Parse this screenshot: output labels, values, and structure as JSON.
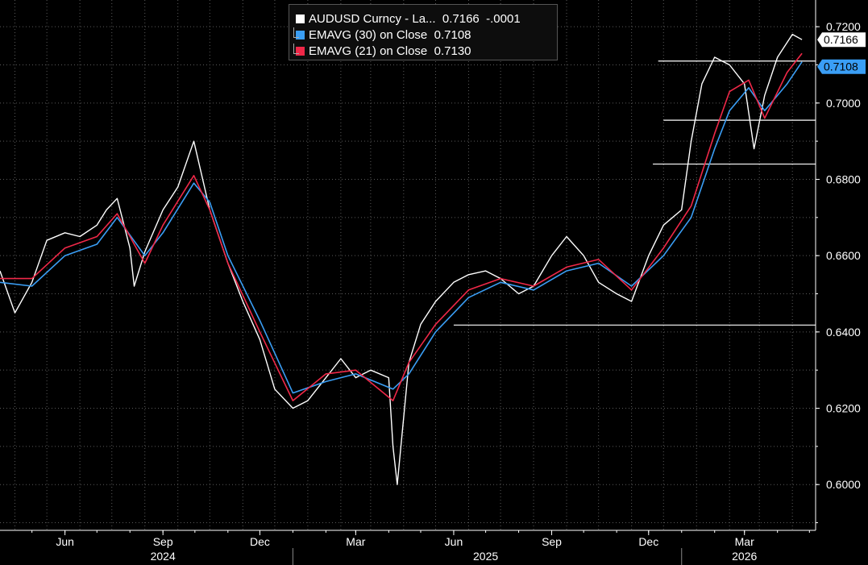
{
  "legend": {
    "items": [
      {
        "label": "AUDUSD Curncy - La...",
        "value": "0.7166",
        "change": "-.0001",
        "color": "#ffffff"
      },
      {
        "label": "EMAVG (30)  on Close",
        "value": "0.7108",
        "color": "#3a9ef5"
      },
      {
        "label": "EMAVG (21)  on Close",
        "value": "0.7130",
        "color": "#f02848"
      }
    ]
  },
  "price_tags": [
    {
      "text": "0.7166",
      "bg": "#ffffff",
      "fg": "#000000"
    },
    {
      "text": "0.7108",
      "bg": "#3a9ef5",
      "fg": "#000000"
    }
  ],
  "chart_data": {
    "type": "line",
    "title": "",
    "xlabel": "",
    "ylabel": "",
    "ylim": [
      0.588,
      0.727
    ],
    "y_ticks": [
      "0.6000",
      "0.6200",
      "0.6400",
      "0.6600",
      "0.6800",
      "0.7000",
      "0.7200"
    ],
    "month_ticks": [
      "Jun",
      "Sep",
      "Dec",
      "Mar",
      "Jun",
      "Sep",
      "Dec",
      "Mar"
    ],
    "year_labels": [
      "2024",
      "2025",
      "2026"
    ],
    "grid": true,
    "legend_position": "top-center",
    "colors": {
      "price": "#ffffff",
      "ema30": "#3a9ef5",
      "ema21": "#f02848",
      "background": "#000000"
    },
    "series": [
      {
        "name": "AUDUSD Curncy",
        "x": [
          "2024-04-01",
          "2024-04-15",
          "2024-05-01",
          "2024-05-15",
          "2024-06-01",
          "2024-06-15",
          "2024-07-01",
          "2024-07-10",
          "2024-07-20",
          "2024-08-01",
          "2024-08-05",
          "2024-08-15",
          "2024-09-01",
          "2024-09-15",
          "2024-09-30",
          "2024-10-15",
          "2024-11-01",
          "2024-11-15",
          "2024-12-01",
          "2024-12-15",
          "2025-01-01",
          "2025-01-15",
          "2025-02-01",
          "2025-02-15",
          "2025-03-01",
          "2025-03-15",
          "2025-04-01",
          "2025-04-05",
          "2025-04-09",
          "2025-04-20",
          "2025-05-01",
          "2025-05-15",
          "2025-06-01",
          "2025-06-15",
          "2025-07-01",
          "2025-07-15",
          "2025-08-01",
          "2025-08-15",
          "2025-09-01",
          "2025-09-15",
          "2025-10-01",
          "2025-10-15",
          "2025-11-01",
          "2025-11-15",
          "2025-12-01",
          "2025-12-15",
          "2026-01-01",
          "2026-01-10",
          "2026-01-20",
          "2026-02-01",
          "2026-02-15",
          "2026-03-01",
          "2026-03-10",
          "2026-03-20",
          "2026-04-01",
          "2026-04-15",
          "2026-04-24"
        ],
        "values": [
          0.656,
          0.645,
          0.653,
          0.664,
          0.666,
          0.665,
          0.668,
          0.672,
          0.675,
          0.662,
          0.652,
          0.661,
          0.672,
          0.678,
          0.69,
          0.672,
          0.658,
          0.648,
          0.638,
          0.625,
          0.62,
          0.622,
          0.628,
          0.633,
          0.628,
          0.63,
          0.628,
          0.61,
          0.6,
          0.632,
          0.642,
          0.648,
          0.653,
          0.655,
          0.656,
          0.654,
          0.65,
          0.652,
          0.66,
          0.665,
          0.66,
          0.653,
          0.65,
          0.648,
          0.66,
          0.668,
          0.672,
          0.69,
          0.705,
          0.712,
          0.71,
          0.705,
          0.688,
          0.702,
          0.712,
          0.718,
          0.7166
        ]
      },
      {
        "name": "EMAVG (30)  on Close",
        "x": [
          "2024-04-01",
          "2024-05-01",
          "2024-06-01",
          "2024-07-01",
          "2024-07-20",
          "2024-08-15",
          "2024-09-01",
          "2024-09-30",
          "2024-10-15",
          "2024-11-01",
          "2024-12-01",
          "2025-01-01",
          "2025-02-01",
          "2025-03-01",
          "2025-04-05",
          "2025-04-20",
          "2025-05-15",
          "2025-06-15",
          "2025-07-15",
          "2025-08-15",
          "2025-09-15",
          "2025-10-15",
          "2025-11-15",
          "2025-12-15",
          "2026-01-10",
          "2026-02-01",
          "2026-02-15",
          "2026-03-05",
          "2026-03-20",
          "2026-04-10",
          "2026-04-24"
        ],
        "values": [
          0.653,
          0.652,
          0.66,
          0.663,
          0.67,
          0.66,
          0.666,
          0.679,
          0.674,
          0.66,
          0.643,
          0.624,
          0.627,
          0.629,
          0.625,
          0.629,
          0.64,
          0.649,
          0.653,
          0.651,
          0.656,
          0.658,
          0.652,
          0.66,
          0.67,
          0.688,
          0.698,
          0.704,
          0.698,
          0.705,
          0.7108
        ]
      },
      {
        "name": "EMAVG (21)  on Close",
        "x": [
          "2024-04-01",
          "2024-05-01",
          "2024-06-01",
          "2024-07-01",
          "2024-07-20",
          "2024-08-15",
          "2024-09-01",
          "2024-09-30",
          "2024-10-15",
          "2024-11-01",
          "2024-12-01",
          "2025-01-01",
          "2025-02-01",
          "2025-03-01",
          "2025-04-05",
          "2025-04-20",
          "2025-05-15",
          "2025-06-15",
          "2025-07-15",
          "2025-08-15",
          "2025-09-15",
          "2025-10-15",
          "2025-11-15",
          "2025-12-15",
          "2026-01-10",
          "2026-02-01",
          "2026-02-15",
          "2026-03-05",
          "2026-03-20",
          "2026-04-10",
          "2026-04-24"
        ],
        "values": [
          0.654,
          0.654,
          0.662,
          0.665,
          0.671,
          0.658,
          0.668,
          0.681,
          0.672,
          0.658,
          0.64,
          0.622,
          0.629,
          0.63,
          0.622,
          0.632,
          0.642,
          0.651,
          0.654,
          0.652,
          0.657,
          0.659,
          0.651,
          0.662,
          0.673,
          0.692,
          0.703,
          0.706,
          0.696,
          0.708,
          0.713
        ]
      }
    ],
    "horizontal_levels": [
      {
        "y": 0.711,
        "from": "2025-12-10"
      },
      {
        "y": 0.6955,
        "from": "2025-12-15"
      },
      {
        "y": 0.684,
        "from": "2025-12-05"
      },
      {
        "y": 0.6418,
        "from": "2025-06-01"
      }
    ]
  }
}
